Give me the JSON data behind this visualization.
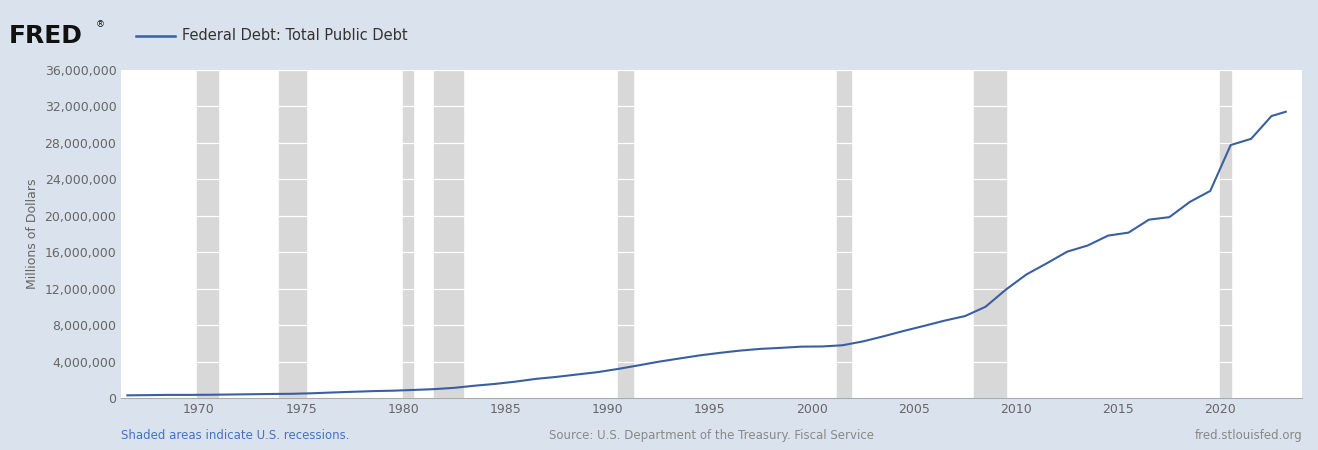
{
  "title": "Federal Debt: Total Public Debt",
  "ylabel": "Millions of Dollars",
  "figure_bg": "#dae3ed",
  "plot_bg": "#ffffff",
  "line_color": "#3a5fa0",
  "line_width": 1.5,
  "yticks": [
    0,
    4000000,
    8000000,
    12000000,
    16000000,
    20000000,
    24000000,
    28000000,
    32000000,
    36000000
  ],
  "xticks": [
    1970,
    1975,
    1980,
    1985,
    1990,
    1995,
    2000,
    2005,
    2010,
    2015,
    2020
  ],
  "xmin": 1966.2,
  "xmax": 2024.0,
  "ymin": 0,
  "ymax": 36000000,
  "recession_bands": [
    [
      1969.917,
      1970.917
    ],
    [
      1973.917,
      1975.25
    ],
    [
      1980.0,
      1980.5
    ],
    [
      1981.5,
      1982.917
    ],
    [
      1990.5,
      1991.25
    ],
    [
      2001.25,
      2001.917
    ],
    [
      2007.917,
      2009.5
    ],
    [
      2020.0,
      2020.5
    ]
  ],
  "recession_color": "#d8d8d8",
  "recession_alpha": 1.0,
  "footer_left": "Shaded areas indicate U.S. recessions.",
  "footer_center": "Source: U.S. Department of the Treasury. Fiscal Service",
  "footer_right": "fred.stlouisfed.org",
  "footer_color_left": "#4472c4",
  "footer_color_center": "#888888",
  "footer_color_right": "#888888",
  "tick_color": "#666666",
  "grid_color": "#e8e8e8",
  "data_years": [
    1966.5,
    1967.5,
    1968.5,
    1969.5,
    1970.5,
    1971.5,
    1972.5,
    1973.5,
    1974.5,
    1975.5,
    1976.5,
    1977.5,
    1978.5,
    1979.5,
    1980.5,
    1981.5,
    1982.5,
    1983.5,
    1984.5,
    1985.5,
    1986.5,
    1987.5,
    1988.5,
    1989.5,
    1990.5,
    1991.5,
    1992.5,
    1993.5,
    1994.5,
    1995.5,
    1996.5,
    1997.5,
    1998.5,
    1999.5,
    2000.5,
    2001.5,
    2002.5,
    2003.5,
    2004.5,
    2005.5,
    2006.5,
    2007.5,
    2008.5,
    2009.5,
    2010.5,
    2011.5,
    2012.5,
    2013.5,
    2014.5,
    2015.5,
    2016.5,
    2017.5,
    2018.5,
    2019.5,
    2020.5,
    2021.5,
    2022.5,
    2023.2
  ],
  "data_values": [
    319000,
    341000,
    369000,
    367000,
    383000,
    409000,
    437000,
    468000,
    486000,
    542000,
    629000,
    706000,
    780000,
    829000,
    909000,
    998000,
    1142000,
    1377000,
    1572000,
    1823000,
    2125000,
    2340000,
    2602000,
    2857000,
    3206000,
    3598000,
    4002000,
    4351000,
    4693000,
    4974000,
    5225000,
    5413000,
    5526000,
    5656000,
    5674000,
    5807000,
    6228000,
    6783000,
    7379000,
    7933000,
    8507000,
    9008000,
    10025000,
    11910000,
    13562000,
    14790000,
    16066000,
    16738000,
    17824000,
    18151000,
    19573000,
    19846000,
    21516000,
    22719000,
    27748000,
    28429000,
    30929000,
    31400000
  ]
}
